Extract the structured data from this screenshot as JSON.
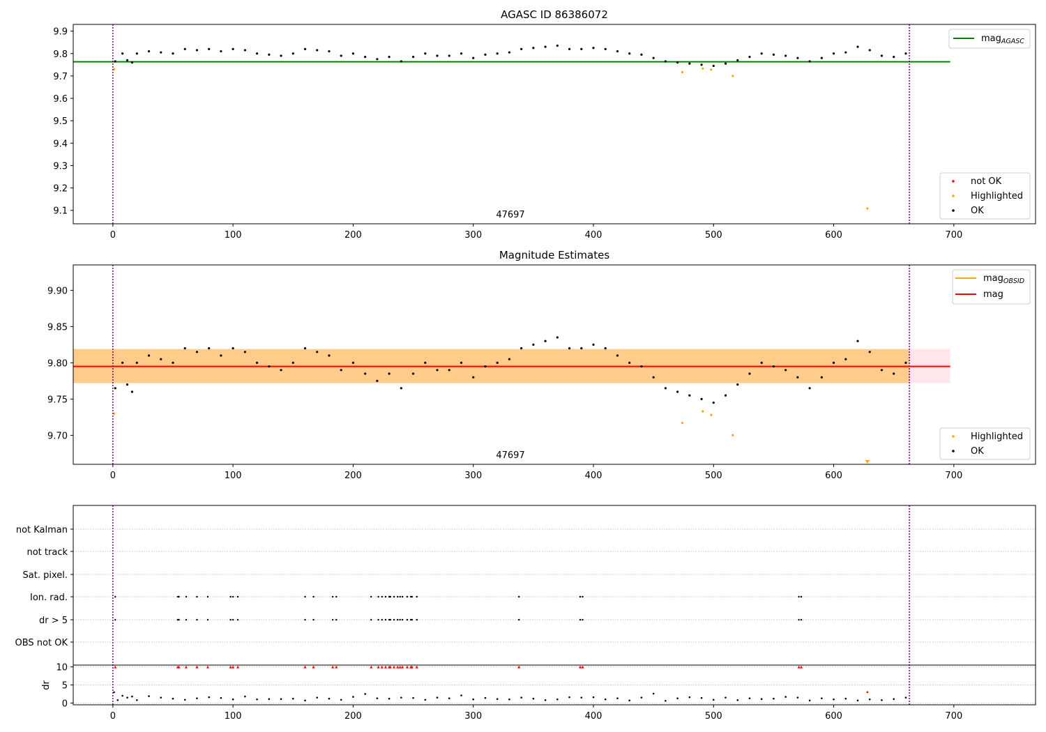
{
  "chart_data": [
    {
      "type": "scatter",
      "title": "AGASC ID 86386072",
      "xlim": [
        -33,
        768
      ],
      "ylim": [
        9.04,
        9.93
      ],
      "xticks": [
        0,
        100,
        200,
        300,
        400,
        500,
        600,
        700
      ],
      "yticks": [
        9.1,
        9.2,
        9.3,
        9.4,
        9.5,
        9.6,
        9.7,
        9.8,
        9.9
      ],
      "annotation": "47697",
      "vlines": [
        0,
        663
      ],
      "lines": [
        {
          "name": "mag_AGASC",
          "y": 9.763,
          "x": [
            -33,
            697
          ],
          "color": "#008000"
        }
      ],
      "legend_upper": {
        "placement": "upper-right",
        "entries": [
          {
            "label": "mag",
            "sub": "AGASC",
            "color": "#008000"
          }
        ]
      },
      "legend_lower": {
        "placement": "lower-right",
        "entries": [
          {
            "label": "not OK",
            "color": "#ff0000"
          },
          {
            "label": "Highlighted",
            "color": "#ffa500"
          },
          {
            "label": "OK",
            "color": "#000000"
          }
        ]
      },
      "series": [
        {
          "name": "OK",
          "color": "#000000",
          "x": [
            2,
            8,
            12,
            16,
            20,
            30,
            40,
            50,
            60,
            70,
            80,
            90,
            100,
            110,
            120,
            130,
            140,
            150,
            160,
            170,
            180,
            190,
            200,
            210,
            220,
            230,
            240,
            250,
            260,
            270,
            280,
            290,
            300,
            310,
            320,
            330,
            340,
            350,
            360,
            370,
            380,
            390,
            400,
            410,
            420,
            430,
            440,
            450,
            460,
            470,
            480,
            490,
            500,
            510,
            520,
            530,
            540,
            550,
            560,
            570,
            580,
            590,
            600,
            610,
            620,
            630,
            640,
            650,
            660
          ],
          "y": [
            9.765,
            9.8,
            9.77,
            9.76,
            9.8,
            9.81,
            9.805,
            9.8,
            9.82,
            9.815,
            9.82,
            9.81,
            9.82,
            9.815,
            9.8,
            9.795,
            9.79,
            9.8,
            9.82,
            9.815,
            9.81,
            9.79,
            9.8,
            9.785,
            9.775,
            9.785,
            9.765,
            9.785,
            9.8,
            9.79,
            9.79,
            9.8,
            9.78,
            9.795,
            9.8,
            9.805,
            9.82,
            9.825,
            9.83,
            9.835,
            9.82,
            9.82,
            9.825,
            9.82,
            9.81,
            9.8,
            9.795,
            9.78,
            9.765,
            9.76,
            9.755,
            9.75,
            9.745,
            9.755,
            9.77,
            9.785,
            9.8,
            9.795,
            9.79,
            9.78,
            9.765,
            9.78,
            9.8,
            9.805,
            9.83,
            9.815,
            9.79,
            9.785,
            9.8
          ]
        },
        {
          "name": "Highlighted",
          "color": "#ffa500",
          "x": [
            1,
            474,
            491,
            498,
            516,
            628
          ],
          "y": [
            9.73,
            9.717,
            9.733,
            9.728,
            9.7,
            9.108
          ]
        }
      ]
    },
    {
      "type": "scatter",
      "title": "Magnitude Estimates",
      "xlim": [
        -33,
        768
      ],
      "ylim": [
        9.66,
        9.935
      ],
      "xticks": [
        0,
        100,
        200,
        300,
        400,
        500,
        600,
        700
      ],
      "yticks": [
        9.7,
        9.75,
        9.8,
        9.85,
        9.9
      ],
      "ytick_labels": [
        "9.70",
        "9.75",
        "9.80",
        "9.85",
        "9.90"
      ],
      "annotation": "47697",
      "vlines": [
        0,
        663
      ],
      "lines": [
        {
          "name": "mag_OBSID",
          "y": 9.795,
          "x": [
            -33,
            663
          ],
          "color": "#ffa500"
        },
        {
          "name": "mag",
          "y": 9.795,
          "x": [
            -33,
            697
          ],
          "color": "#ff0000"
        }
      ],
      "bands": [
        {
          "y": [
            9.772,
            9.819
          ],
          "x": [
            -33,
            697
          ],
          "color": "#ffc0cb"
        },
        {
          "y": [
            9.772,
            9.819
          ],
          "x": [
            -33,
            663
          ],
          "color": "#ffa500"
        }
      ],
      "legend_upper": {
        "placement": "upper-right",
        "entries": [
          {
            "label": "mag",
            "sub": "OBSID",
            "color": "#ffa500"
          },
          {
            "label": "mag",
            "sub": "",
            "color": "#ff0000"
          }
        ]
      },
      "legend_lower": {
        "placement": "lower-right",
        "entries": [
          {
            "label": "Highlighted",
            "color": "#ffa500"
          },
          {
            "label": "OK",
            "color": "#000000"
          }
        ]
      },
      "series": [
        {
          "name": "OK",
          "color": "#000000",
          "x": [
            2,
            8,
            12,
            16,
            20,
            30,
            40,
            50,
            60,
            70,
            80,
            90,
            100,
            110,
            120,
            130,
            140,
            150,
            160,
            170,
            180,
            190,
            200,
            210,
            220,
            230,
            240,
            250,
            260,
            270,
            280,
            290,
            300,
            310,
            320,
            330,
            340,
            350,
            360,
            370,
            380,
            390,
            400,
            410,
            420,
            430,
            440,
            450,
            460,
            470,
            480,
            490,
            500,
            510,
            520,
            530,
            540,
            550,
            560,
            570,
            580,
            590,
            600,
            610,
            620,
            630,
            640,
            650,
            660
          ],
          "y": [
            9.765,
            9.8,
            9.77,
            9.76,
            9.8,
            9.81,
            9.805,
            9.8,
            9.82,
            9.815,
            9.82,
            9.81,
            9.82,
            9.815,
            9.8,
            9.795,
            9.79,
            9.8,
            9.82,
            9.815,
            9.81,
            9.79,
            9.8,
            9.785,
            9.775,
            9.785,
            9.765,
            9.785,
            9.8,
            9.79,
            9.79,
            9.8,
            9.78,
            9.795,
            9.8,
            9.805,
            9.82,
            9.825,
            9.83,
            9.835,
            9.82,
            9.82,
            9.825,
            9.82,
            9.81,
            9.8,
            9.795,
            9.78,
            9.765,
            9.76,
            9.755,
            9.75,
            9.745,
            9.755,
            9.77,
            9.785,
            9.8,
            9.795,
            9.79,
            9.78,
            9.765,
            9.78,
            9.8,
            9.805,
            9.83,
            9.815,
            9.79,
            9.785,
            9.8
          ]
        },
        {
          "name": "Highlighted",
          "color": "#ffa500",
          "x": [
            1,
            474,
            491,
            498,
            516
          ],
          "y": [
            9.73,
            9.717,
            9.733,
            9.728,
            9.7
          ]
        }
      ],
      "offscale_markers": [
        {
          "x": 628,
          "color": "#ffa500"
        }
      ]
    },
    {
      "type": "scatter",
      "title": "",
      "xlim": [
        -33,
        768
      ],
      "xticks": [
        0,
        100,
        200,
        300,
        400,
        500,
        600,
        700
      ],
      "vlines": [
        0,
        663
      ],
      "flag_rows": [
        "not Kalman",
        "not track",
        "Sat. pixel.",
        "Ion. rad.",
        "dr > 5",
        "OBS not OK"
      ],
      "flags": [
        {
          "row": "Ion. rad.",
          "x": [
            2,
            54,
            55,
            61,
            70,
            79,
            98,
            100,
            104,
            160,
            167,
            183,
            186,
            215,
            221,
            224,
            227,
            230,
            231,
            234,
            237,
            239,
            241,
            245,
            248,
            249,
            253,
            338,
            389,
            391,
            571,
            573
          ]
        },
        {
          "row": "dr > 5",
          "x": [
            2,
            54,
            55,
            61,
            70,
            79,
            98,
            100,
            104,
            160,
            167,
            183,
            186,
            215,
            221,
            224,
            227,
            230,
            231,
            234,
            237,
            239,
            241,
            245,
            248,
            249,
            253,
            338,
            389,
            391,
            571,
            573
          ]
        }
      ],
      "dr_panel": {
        "ylabel": "dr",
        "ylim": [
          -0.5,
          10.5
        ],
        "yticks": [
          0,
          5,
          10
        ],
        "clip_markers": {
          "y": 10,
          "color": "#ff0000",
          "x": [
            2,
            54,
            55,
            61,
            70,
            79,
            98,
            100,
            104,
            160,
            167,
            183,
            186,
            215,
            221,
            224,
            227,
            230,
            231,
            234,
            237,
            239,
            241,
            245,
            248,
            249,
            253,
            338,
            389,
            391,
            571,
            573
          ]
        },
        "series": {
          "name": "dr",
          "color": "#000000",
          "x": [
            1,
            4,
            8,
            12,
            16,
            20,
            30,
            40,
            50,
            60,
            70,
            80,
            90,
            100,
            110,
            120,
            130,
            140,
            150,
            160,
            170,
            180,
            190,
            200,
            210,
            220,
            230,
            240,
            250,
            260,
            270,
            280,
            290,
            300,
            310,
            320,
            330,
            340,
            350,
            360,
            370,
            380,
            390,
            400,
            410,
            420,
            430,
            440,
            450,
            460,
            470,
            480,
            490,
            500,
            510,
            520,
            530,
            540,
            550,
            560,
            570,
            580,
            590,
            600,
            610,
            620,
            630,
            640,
            650,
            660
          ],
          "y": [
            3.0,
            0.8,
            2.0,
            1.5,
            1.8,
            0.8,
            1.9,
            1.5,
            1.2,
            0.9,
            1.3,
            1.6,
            1.4,
            1.0,
            1.8,
            1.0,
            1.1,
            1.1,
            1.2,
            0.7,
            1.5,
            1.2,
            0.9,
            1.7,
            2.5,
            1.3,
            1.2,
            1.5,
            1.4,
            0.9,
            1.5,
            1.3,
            2.1,
            1.0,
            1.4,
            1.1,
            1.0,
            1.5,
            1.2,
            0.8,
            1.0,
            1.6,
            1.5,
            1.6,
            1.0,
            1.3,
            0.7,
            1.5,
            2.6,
            0.6,
            1.3,
            1.6,
            1.4,
            0.9,
            1.5,
            0.8,
            1.3,
            1.1,
            1.2,
            1.7,
            1.5,
            0.7,
            1.3,
            1.0,
            1.2,
            0.7,
            1.0,
            0.8,
            1.1,
            1.5
          ]
        },
        "extra_points": [
          {
            "x": 628,
            "y": 3.0,
            "color": "#ff0000"
          }
        ]
      }
    }
  ]
}
